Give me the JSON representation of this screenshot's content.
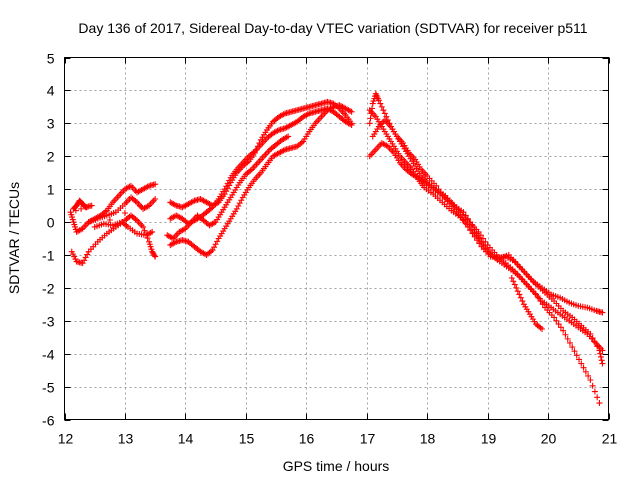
{
  "chart_data": {
    "type": "scatter",
    "title": "Day 136 of 2017, Sidereal Day-to-day VTEC variation (SDTVAR) for receiver p511",
    "xlabel": "GPS time / hours",
    "ylabel": "SDTVAR / TECUs",
    "xlim": [
      12,
      21
    ],
    "ylim": [
      -6,
      5
    ],
    "xticks": [
      "12",
      "13",
      "14",
      "15",
      "16",
      "17",
      "18",
      "19",
      "20",
      "21"
    ],
    "yticks": [
      "-6",
      "-5",
      "-4",
      "-3",
      "-2",
      "-1",
      "0",
      "1",
      "2",
      "3",
      "4",
      "5"
    ],
    "grid": true,
    "marker": "plus",
    "series": [
      {
        "name": "track-a",
        "color": "#ff0000",
        "points": [
          [
            12.12,
            -0.9
          ],
          [
            12.2,
            -1.2
          ],
          [
            12.3,
            -1.25
          ],
          [
            12.4,
            -0.9
          ],
          [
            12.55,
            -0.6
          ],
          [
            12.7,
            -0.35
          ],
          [
            12.85,
            -0.15
          ],
          [
            13.0,
            0.05
          ],
          [
            13.1,
            0.2
          ],
          [
            13.2,
            0.05
          ],
          [
            13.3,
            -0.15
          ],
          [
            13.4,
            -0.6
          ],
          [
            13.45,
            -0.9
          ],
          [
            13.5,
            -1.05
          ]
        ]
      },
      {
        "name": "track-b",
        "color": "#ff0000",
        "points": [
          [
            12.15,
            0.4
          ],
          [
            12.2,
            0.5
          ],
          [
            12.25,
            0.65
          ],
          [
            12.3,
            0.55
          ],
          [
            12.35,
            0.45
          ],
          [
            12.45,
            0.5
          ],
          [
            12.1,
            0.3
          ],
          [
            12.15,
            0.0
          ],
          [
            12.2,
            -0.3
          ],
          [
            12.3,
            -0.2
          ],
          [
            12.4,
            0.0
          ],
          [
            12.5,
            0.1
          ],
          [
            12.6,
            0.2
          ],
          [
            12.7,
            0.35
          ],
          [
            12.8,
            0.6
          ],
          [
            12.9,
            0.8
          ],
          [
            13.0,
            1.0
          ],
          [
            13.1,
            1.1
          ],
          [
            13.2,
            0.9
          ],
          [
            13.3,
            1.0
          ],
          [
            13.4,
            1.1
          ],
          [
            13.5,
            1.15
          ]
        ]
      },
      {
        "name": "track-c",
        "color": "#ff0000",
        "points": [
          [
            12.4,
            0.0
          ],
          [
            12.55,
            0.1
          ],
          [
            12.7,
            0.2
          ],
          [
            12.85,
            0.3
          ],
          [
            13.0,
            0.55
          ],
          [
            13.1,
            0.75
          ],
          [
            13.2,
            0.6
          ],
          [
            13.3,
            0.4
          ],
          [
            13.4,
            0.5
          ],
          [
            13.5,
            0.7
          ],
          [
            12.5,
            -0.15
          ],
          [
            12.65,
            -0.05
          ],
          [
            12.8,
            -0.1
          ],
          [
            12.95,
            0.0
          ],
          [
            13.05,
            -0.15
          ],
          [
            13.2,
            -0.35
          ],
          [
            13.35,
            -0.4
          ],
          [
            13.45,
            -0.3
          ]
        ]
      },
      {
        "name": "track-d",
        "color": "#ff0000",
        "points": [
          [
            13.75,
            -0.7
          ],
          [
            13.85,
            -0.6
          ],
          [
            13.95,
            -0.55
          ],
          [
            14.05,
            -0.6
          ],
          [
            14.15,
            -0.75
          ],
          [
            14.25,
            -0.9
          ],
          [
            14.35,
            -1.0
          ],
          [
            14.45,
            -0.85
          ],
          [
            14.55,
            -0.5
          ],
          [
            14.65,
            -0.2
          ],
          [
            14.75,
            0.1
          ],
          [
            14.85,
            0.4
          ],
          [
            14.95,
            0.75
          ],
          [
            15.05,
            1.05
          ],
          [
            15.15,
            1.3
          ],
          [
            15.25,
            1.5
          ],
          [
            15.35,
            1.75
          ],
          [
            15.45,
            2.0
          ],
          [
            15.55,
            2.1
          ],
          [
            15.65,
            2.2
          ],
          [
            15.75,
            2.25
          ],
          [
            15.85,
            2.3
          ],
          [
            15.95,
            2.45
          ],
          [
            16.05,
            2.75
          ],
          [
            16.15,
            3.0
          ],
          [
            16.25,
            3.2
          ],
          [
            16.35,
            3.4
          ],
          [
            16.45,
            3.5
          ],
          [
            16.55,
            3.55
          ],
          [
            16.65,
            3.45
          ],
          [
            16.75,
            3.35
          ]
        ]
      },
      {
        "name": "track-e",
        "color": "#ff0000",
        "points": [
          [
            13.75,
            0.6
          ],
          [
            13.85,
            0.5
          ],
          [
            13.95,
            0.45
          ],
          [
            14.05,
            0.55
          ],
          [
            14.15,
            0.65
          ],
          [
            14.25,
            0.7
          ],
          [
            14.35,
            0.6
          ],
          [
            14.45,
            0.5
          ],
          [
            14.55,
            0.6
          ],
          [
            14.65,
            0.85
          ],
          [
            14.75,
            1.2
          ],
          [
            14.85,
            1.5
          ],
          [
            14.95,
            1.7
          ],
          [
            15.05,
            1.85
          ],
          [
            15.15,
            2.1
          ],
          [
            15.25,
            2.5
          ],
          [
            15.35,
            2.8
          ],
          [
            15.45,
            3.05
          ],
          [
            15.55,
            3.2
          ],
          [
            15.65,
            3.3
          ],
          [
            15.75,
            3.35
          ],
          [
            15.85,
            3.4
          ],
          [
            15.95,
            3.45
          ],
          [
            16.05,
            3.5
          ],
          [
            16.15,
            3.55
          ],
          [
            16.25,
            3.6
          ],
          [
            16.35,
            3.65
          ],
          [
            16.45,
            3.6
          ],
          [
            16.55,
            3.45
          ],
          [
            16.65,
            3.25
          ],
          [
            16.75,
            3.0
          ]
        ]
      },
      {
        "name": "track-f",
        "color": "#ff0000",
        "points": [
          [
            13.75,
            0.1
          ],
          [
            13.85,
            0.2
          ],
          [
            13.95,
            0.1
          ],
          [
            14.05,
            -0.05
          ],
          [
            14.15,
            0.05
          ],
          [
            14.25,
            0.15
          ],
          [
            14.35,
            0.3
          ],
          [
            14.45,
            0.45
          ],
          [
            14.55,
            0.7
          ],
          [
            14.65,
            1.0
          ],
          [
            14.75,
            1.35
          ],
          [
            14.85,
            1.6
          ],
          [
            14.95,
            1.8
          ],
          [
            15.05,
            2.0
          ],
          [
            15.15,
            2.15
          ],
          [
            15.25,
            2.35
          ],
          [
            15.35,
            2.55
          ],
          [
            15.45,
            2.7
          ],
          [
            15.55,
            2.8
          ],
          [
            15.65,
            2.85
          ],
          [
            15.75,
            2.95
          ],
          [
            15.85,
            3.05
          ],
          [
            15.95,
            3.2
          ],
          [
            16.05,
            3.3
          ],
          [
            16.15,
            3.35
          ],
          [
            16.25,
            3.4
          ],
          [
            16.35,
            3.45
          ],
          [
            16.45,
            3.35
          ],
          [
            16.55,
            3.2
          ],
          [
            16.65,
            3.05
          ],
          [
            16.75,
            2.95
          ]
        ]
      },
      {
        "name": "track-g",
        "color": "#ff0000",
        "points": [
          [
            13.7,
            -0.4
          ],
          [
            13.8,
            -0.5
          ],
          [
            13.9,
            -0.3
          ],
          [
            14.0,
            -0.2
          ],
          [
            14.1,
            0.0
          ],
          [
            14.2,
            0.2
          ],
          [
            14.3,
            0.05
          ],
          [
            14.4,
            -0.1
          ],
          [
            14.5,
            0.0
          ],
          [
            14.6,
            0.3
          ],
          [
            14.7,
            0.6
          ],
          [
            14.8,
            0.9
          ],
          [
            14.9,
            1.2
          ],
          [
            15.0,
            1.45
          ],
          [
            15.1,
            1.6
          ],
          [
            15.2,
            1.8
          ],
          [
            15.3,
            2.0
          ],
          [
            15.4,
            2.2
          ],
          [
            15.5,
            2.35
          ],
          [
            15.6,
            2.5
          ],
          [
            15.7,
            2.6
          ]
        ]
      },
      {
        "name": "track-h",
        "color": "#ff0000",
        "points": [
          [
            17.05,
            3.0
          ],
          [
            17.1,
            3.6
          ],
          [
            17.15,
            3.9
          ],
          [
            17.2,
            3.7
          ],
          [
            17.3,
            3.3
          ],
          [
            17.4,
            2.9
          ],
          [
            17.5,
            2.6
          ],
          [
            17.6,
            2.3
          ],
          [
            17.7,
            2.0
          ],
          [
            17.8,
            1.7
          ],
          [
            17.9,
            1.4
          ],
          [
            18.0,
            1.2
          ],
          [
            18.15,
            1.0
          ],
          [
            18.3,
            0.8
          ],
          [
            18.45,
            0.5
          ],
          [
            18.6,
            0.3
          ],
          [
            18.75,
            -0.1
          ],
          [
            18.9,
            -0.6
          ],
          [
            19.05,
            -1.0
          ],
          [
            19.2,
            -1.2
          ],
          [
            19.35,
            -1.4
          ],
          [
            19.5,
            -1.6
          ],
          [
            19.65,
            -1.9
          ],
          [
            19.8,
            -2.2
          ],
          [
            19.95,
            -2.6
          ],
          [
            20.1,
            -2.9
          ],
          [
            20.25,
            -3.3
          ],
          [
            20.4,
            -3.8
          ],
          [
            20.55,
            -4.3
          ],
          [
            20.7,
            -4.8
          ],
          [
            20.85,
            -5.5
          ]
        ]
      },
      {
        "name": "track-i",
        "color": "#ff0000",
        "points": [
          [
            17.05,
            2.0
          ],
          [
            17.15,
            2.2
          ],
          [
            17.25,
            2.4
          ],
          [
            17.35,
            2.3
          ],
          [
            17.45,
            2.1
          ],
          [
            17.55,
            1.8
          ],
          [
            17.65,
            1.6
          ],
          [
            17.75,
            1.45
          ],
          [
            17.85,
            1.35
          ],
          [
            17.95,
            1.2
          ],
          [
            18.1,
            1.0
          ],
          [
            18.25,
            0.8
          ],
          [
            18.4,
            0.6
          ],
          [
            18.55,
            0.3
          ],
          [
            18.7,
            0.0
          ],
          [
            18.85,
            -0.3
          ],
          [
            19.0,
            -0.7
          ],
          [
            19.15,
            -1.0
          ],
          [
            19.3,
            -1.25
          ],
          [
            19.45,
            -1.5
          ],
          [
            19.6,
            -1.8
          ],
          [
            19.75,
            -2.1
          ],
          [
            19.9,
            -2.4
          ],
          [
            20.05,
            -2.6
          ],
          [
            20.2,
            -2.8
          ],
          [
            20.35,
            -3.0
          ],
          [
            20.5,
            -3.2
          ],
          [
            20.65,
            -3.4
          ],
          [
            20.8,
            -3.7
          ],
          [
            20.9,
            -3.9
          ]
        ]
      },
      {
        "name": "track-j",
        "color": "#ff0000",
        "points": [
          [
            17.05,
            3.4
          ],
          [
            17.15,
            3.2
          ],
          [
            17.25,
            2.9
          ],
          [
            17.35,
            2.6
          ],
          [
            17.45,
            2.3
          ],
          [
            17.55,
            2.0
          ],
          [
            17.65,
            1.8
          ],
          [
            17.75,
            1.6
          ],
          [
            17.85,
            1.3
          ],
          [
            17.95,
            1.05
          ],
          [
            18.1,
            0.85
          ],
          [
            18.25,
            0.6
          ],
          [
            18.4,
            0.35
          ],
          [
            18.55,
            0.15
          ],
          [
            18.7,
            -0.15
          ],
          [
            18.85,
            -0.5
          ],
          [
            19.0,
            -0.9
          ],
          [
            19.15,
            -1.1
          ],
          [
            19.3,
            -1.05
          ],
          [
            19.45,
            -1.2
          ],
          [
            19.6,
            -1.5
          ],
          [
            19.75,
            -1.8
          ],
          [
            19.9,
            -2.0
          ],
          [
            20.05,
            -2.2
          ],
          [
            20.2,
            -2.3
          ],
          [
            20.35,
            -2.45
          ],
          [
            20.5,
            -2.55
          ],
          [
            20.65,
            -2.6
          ],
          [
            20.8,
            -2.7
          ],
          [
            20.9,
            -2.75
          ]
        ]
      },
      {
        "name": "track-k",
        "color": "#ff0000",
        "points": [
          [
            17.1,
            2.6
          ],
          [
            17.2,
            2.9
          ],
          [
            17.3,
            3.1
          ],
          [
            17.4,
            2.9
          ],
          [
            17.5,
            2.6
          ],
          [
            17.6,
            2.4
          ],
          [
            17.7,
            2.1
          ],
          [
            17.8,
            1.9
          ],
          [
            17.9,
            1.6
          ],
          [
            18.0,
            1.4
          ],
          [
            18.15,
            1.1
          ],
          [
            18.3,
            0.7
          ],
          [
            18.45,
            0.4
          ],
          [
            18.6,
            0.05
          ],
          [
            18.75,
            -0.35
          ],
          [
            18.9,
            -0.75
          ],
          [
            19.05,
            -1.05
          ],
          [
            19.2,
            -1.1
          ],
          [
            19.35,
            -1.0
          ],
          [
            19.5,
            -1.3
          ],
          [
            19.65,
            -1.6
          ],
          [
            19.8,
            -1.9
          ],
          [
            19.95,
            -2.15
          ],
          [
            20.1,
            -2.4
          ],
          [
            20.25,
            -2.7
          ],
          [
            20.4,
            -2.9
          ],
          [
            20.55,
            -3.15
          ],
          [
            20.7,
            -3.4
          ],
          [
            20.85,
            -3.9
          ],
          [
            20.9,
            -4.3
          ]
        ]
      },
      {
        "name": "track-l",
        "color": "#ff0000",
        "points": [
          [
            19.4,
            -1.7
          ],
          [
            19.5,
            -2.1
          ],
          [
            19.6,
            -2.5
          ],
          [
            19.7,
            -2.8
          ],
          [
            19.8,
            -3.1
          ],
          [
            19.9,
            -3.25
          ]
        ]
      }
    ]
  }
}
